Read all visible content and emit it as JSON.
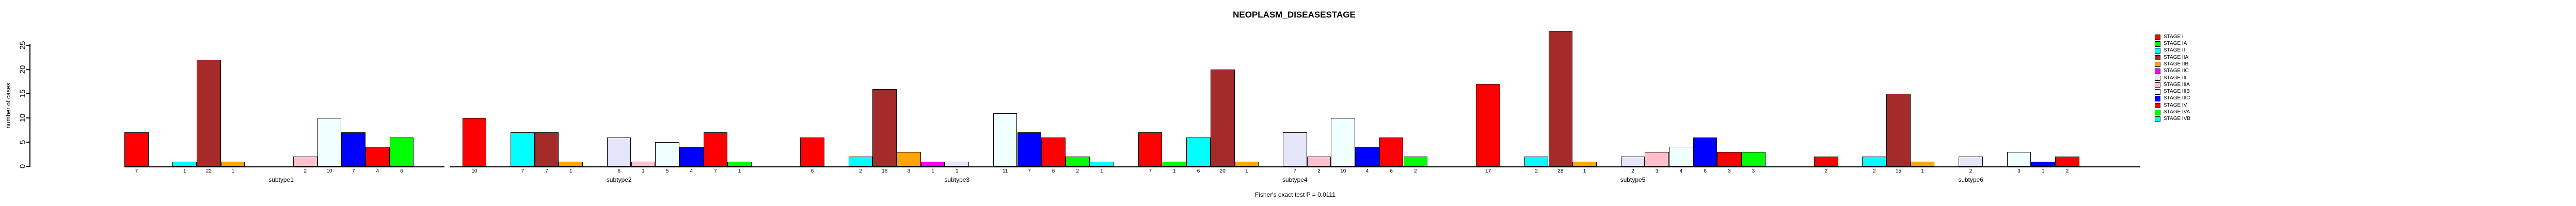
{
  "title": "NEOPLASM_DISEASESTAGE",
  "caption": "Fisher's exact test P = 0.0111",
  "y_axis": {
    "label": "number of cases",
    "ticks": [
      0,
      5,
      10,
      15,
      20,
      25
    ]
  },
  "stages": [
    {
      "name": "STAGE I",
      "color": "#FF0000"
    },
    {
      "name": "STAGE IA",
      "color": "#00FF00"
    },
    {
      "name": "STAGE II",
      "color": "#00FFFF"
    },
    {
      "name": "STAGE IIA",
      "color": "#A52A2A"
    },
    {
      "name": "STAGE IIB",
      "color": "#FFA500"
    },
    {
      "name": "STAGE IIC",
      "color": "#FF00FF"
    },
    {
      "name": "STAGE III",
      "color": "#E6E6FA"
    },
    {
      "name": "STAGE IIIA",
      "color": "#FFC0CB"
    },
    {
      "name": "STAGE IIIB",
      "color": "#F0FFFF"
    },
    {
      "name": "STAGE IIIC",
      "color": "#0000FF"
    },
    {
      "name": "STAGE IV",
      "color": "#FF0000"
    },
    {
      "name": "STAGE IVA",
      "color": "#00FF00"
    },
    {
      "name": "STAGE IVB",
      "color": "#00FFFF"
    }
  ],
  "panels": [
    {
      "label": "subtype1",
      "values": [
        7,
        0,
        1,
        22,
        1,
        0,
        0,
        2,
        10,
        7,
        4,
        6,
        0
      ]
    },
    {
      "label": "subtype2",
      "values": [
        10,
        0,
        7,
        7,
        1,
        0,
        6,
        1,
        5,
        4,
        7,
        1,
        0
      ]
    },
    {
      "label": "subtype3",
      "values": [
        6,
        0,
        2,
        16,
        3,
        1,
        1,
        0,
        11,
        7,
        6,
        2,
        1
      ]
    },
    {
      "label": "subtype4",
      "values": [
        7,
        1,
        6,
        20,
        1,
        0,
        7,
        2,
        10,
        4,
        6,
        2,
        0
      ]
    },
    {
      "label": "subtype5",
      "values": [
        17,
        0,
        2,
        28,
        1,
        0,
        2,
        3,
        4,
        6,
        3,
        3,
        0
      ]
    },
    {
      "label": "subtype6",
      "values": [
        2,
        0,
        2,
        15,
        1,
        0,
        2,
        0,
        3,
        1,
        2,
        0,
        0
      ]
    }
  ],
  "chart_data": {
    "type": "bar",
    "title": "NEOPLASM_DISEASESTAGE",
    "xlabel": "",
    "ylabel": "number of cases",
    "ylim": [
      0,
      25
    ],
    "grid": false,
    "legend_position": "right",
    "annotation": "Fisher's exact test P = 0.0111",
    "categories": [
      "STAGE I",
      "STAGE IA",
      "STAGE II",
      "STAGE IIA",
      "STAGE IIB",
      "STAGE IIC",
      "STAGE III",
      "STAGE IIIA",
      "STAGE IIIB",
      "STAGE IIIC",
      "STAGE IV",
      "STAGE IVA",
      "STAGE IVB"
    ],
    "colors": [
      "#FF0000",
      "#00FF00",
      "#00FFFF",
      "#A52A2A",
      "#FFA500",
      "#FF00FF",
      "#E6E6FA",
      "#FFC0CB",
      "#F0FFFF",
      "#0000FF",
      "#FF0000",
      "#00FF00",
      "#00FFFF"
    ],
    "series": [
      {
        "name": "subtype1",
        "values": [
          7,
          0,
          1,
          22,
          1,
          0,
          0,
          2,
          10,
          7,
          4,
          6,
          0
        ]
      },
      {
        "name": "subtype2",
        "values": [
          10,
          0,
          7,
          7,
          1,
          0,
          6,
          1,
          5,
          4,
          7,
          1,
          0
        ]
      },
      {
        "name": "subtype3",
        "values": [
          6,
          0,
          2,
          16,
          3,
          1,
          1,
          0,
          11,
          7,
          6,
          2,
          1
        ]
      },
      {
        "name": "subtype4",
        "values": [
          7,
          1,
          6,
          20,
          1,
          0,
          7,
          2,
          10,
          4,
          6,
          2,
          0
        ]
      },
      {
        "name": "subtype5",
        "values": [
          17,
          0,
          2,
          28,
          1,
          0,
          2,
          3,
          4,
          6,
          3,
          3,
          0
        ]
      },
      {
        "name": "subtype6",
        "values": [
          2,
          0,
          2,
          15,
          1,
          0,
          2,
          0,
          3,
          1,
          2,
          0,
          0
        ]
      }
    ]
  }
}
